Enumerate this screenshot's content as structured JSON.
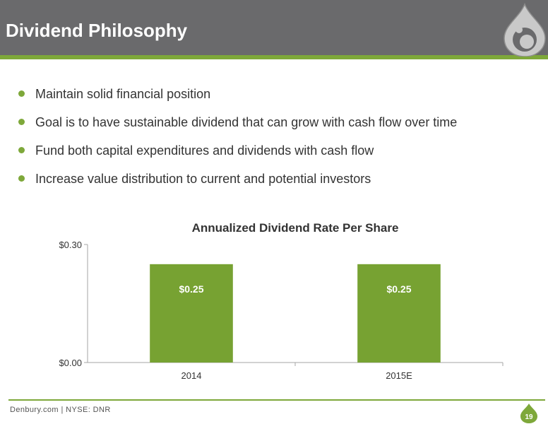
{
  "slide": {
    "title": "Dividend Philosophy",
    "bullets": [
      "Maintain solid financial position",
      "Goal is to have sustainable dividend that can grow with cash flow over time",
      "Fund both capital expenditures and dividends with cash flow",
      "Increase value distribution to current and potential investors"
    ],
    "footer": "Denbury.com | NYSE: DNR",
    "page_number": "19",
    "logo_icon": "denbury-drop-logo-icon"
  },
  "colors": {
    "header_gray": "#6a6a6c",
    "accent_green": "#7ea83a",
    "bar_green": "#77a232"
  },
  "chart_data": {
    "type": "bar",
    "title": "Annualized Dividend Rate Per Share",
    "categories": [
      "2014",
      "2015E"
    ],
    "values": [
      0.25,
      0.25
    ],
    "value_labels": [
      "$0.25",
      "$0.25"
    ],
    "ylim": [
      0,
      0.3
    ],
    "yticks": [
      0,
      0.3
    ],
    "ytick_labels": [
      "$0.00",
      "$0.30"
    ],
    "xlabel": "",
    "ylabel": "",
    "grid": false,
    "legend": "none"
  }
}
